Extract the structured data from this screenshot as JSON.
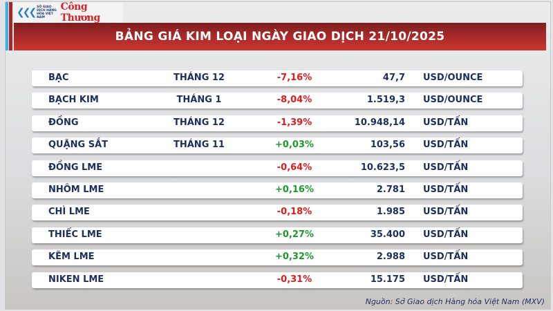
{
  "header": {
    "logo_org": "SỞ GIAO DỊCH HÀNG HÓA VIỆT NAM",
    "logo_brand": "Công Thương",
    "title": "BẢNG GIÁ KIM LOẠI NGÀY GIAO DỊCH 21/10/2025"
  },
  "colors": {
    "negative": "#e01b1b",
    "positive": "#1a9a2a",
    "title_band": "#a92a2a",
    "text": "#1c2d5e"
  },
  "rows": [
    {
      "name": "BẠC",
      "month": "THÁNG 12",
      "change": "-7,16%",
      "price": "47,7",
      "unit": "USD/OUNCE"
    },
    {
      "name": "BẠCH KIM",
      "month": "THÁNG 1",
      "change": "-8,04%",
      "price": "1.519,3",
      "unit": "USD/OUNCE"
    },
    {
      "name": "ĐỒNG",
      "month": "THÁNG 12",
      "change": "-1,39%",
      "price": "10.948,14",
      "unit": "USD/TẤN"
    },
    {
      "name": "QUẶNG SẮT",
      "month": "THÁNG 11",
      "change": "+0,03%",
      "price": "103,56",
      "unit": "USD/TẤN"
    },
    {
      "name": "ĐỒNG LME",
      "month": "",
      "change": "-0,64%",
      "price": "10.623,5",
      "unit": "USD/TẤN"
    },
    {
      "name": "NHÔM LME",
      "month": "",
      "change": "+0,16%",
      "price": "2.781",
      "unit": "USD/TẤN"
    },
    {
      "name": "CHÌ LME",
      "month": "",
      "change": "-0,18%",
      "price": "1.985",
      "unit": "USD/TẤN"
    },
    {
      "name": "THIẾC LME",
      "month": "",
      "change": "+0,27%",
      "price": "35.400",
      "unit": "USD/TẤN"
    },
    {
      "name": "KẼM LME",
      "month": "",
      "change": "+0,32%",
      "price": "2.988",
      "unit": "USD/TẤN"
    },
    {
      "name": "NIKEN LME",
      "month": "",
      "change": "-0,31%",
      "price": "15.175",
      "unit": "USD/TẤN"
    }
  ],
  "source": "Nguồn: Sở Giao dịch Hàng hóa Việt Nam (MXV)"
}
